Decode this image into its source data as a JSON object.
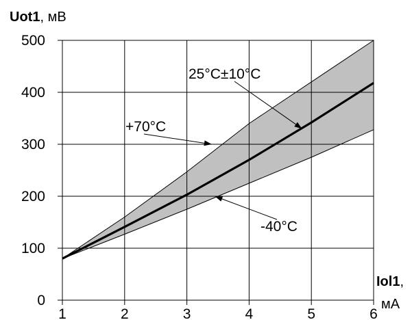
{
  "chart_data": {
    "type": "area",
    "x": [
      1,
      2,
      3,
      4,
      5,
      6
    ],
    "series": [
      {
        "name": "25°C±10°C",
        "role": "line",
        "values": [
          80,
          141,
          203,
          270,
          342,
          418
        ]
      },
      {
        "name": "+70°C",
        "role": "band-upper",
        "values": [
          80,
          160,
          247,
          340,
          420,
          500
        ]
      },
      {
        "name": "-40°C",
        "role": "band-lower",
        "values": [
          80,
          127,
          175,
          225,
          275,
          328
        ]
      }
    ],
    "xlim": [
      1,
      6
    ],
    "ylim": [
      0,
      500
    ],
    "xticks": [
      "1",
      "2",
      "3",
      "4",
      "5",
      "6"
    ],
    "yticks": [
      "0",
      "100",
      "200",
      "300",
      "400",
      "500"
    ],
    "ylabel": {
      "bold": "Uot1",
      "rest": ", мВ"
    },
    "xlabel": {
      "bold": "Iol1",
      "line1_rest": ",",
      "line2": "мА"
    },
    "annotations": [
      {
        "text": "25°C±10°C",
        "point": [
          4.85,
          330
        ]
      },
      {
        "text": "+70°C",
        "point": [
          3.4,
          300
        ]
      },
      {
        "text": "-40°C",
        "point": [
          3.45,
          200
        ]
      }
    ],
    "grid": true,
    "colors": {
      "band": "#c0c0c0",
      "line": "#000000",
      "grid": "#000000"
    }
  }
}
